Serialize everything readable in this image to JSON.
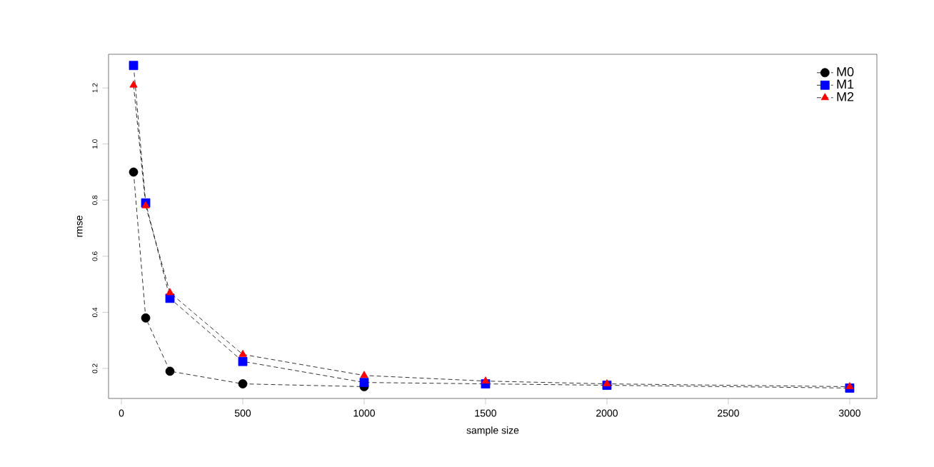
{
  "chart_data": {
    "type": "line",
    "xlabel": "sample size",
    "ylabel": "rmse",
    "x": [
      50,
      100,
      200,
      500,
      1000,
      1500,
      2000,
      3000
    ],
    "series": [
      {
        "name": "M0",
        "color": "#000000",
        "marker": "circle",
        "values": [
          0.9,
          0.38,
          0.19,
          0.145,
          0.135,
          null,
          null,
          null
        ]
      },
      {
        "name": "M1",
        "color": "#0000ff",
        "marker": "square",
        "values": [
          1.28,
          0.79,
          0.45,
          0.225,
          0.15,
          0.145,
          0.14,
          0.13
        ]
      },
      {
        "name": "M2",
        "color": "#ff0000",
        "marker": "triangle",
        "values": [
          1.21,
          0.78,
          0.47,
          0.25,
          0.175,
          0.155,
          0.145,
          0.135
        ]
      }
    ],
    "line_style": "dashed",
    "legend": "top right",
    "xlim": [
      -53,
      3112
    ],
    "ylim": [
      0.093,
      1.32
    ],
    "xticks": [
      0,
      500,
      1000,
      1500,
      2000,
      2500,
      3000
    ],
    "yticks": [
      {
        "value": 0.2,
        "label": "0.2"
      },
      {
        "value": 0.4,
        "label": "0.4"
      },
      {
        "value": 0.6,
        "label": "0.6"
      },
      {
        "value": 0.8,
        "label": "0.8"
      },
      {
        "value": 1.0,
        "label": "1.0"
      },
      {
        "value": 1.2,
        "label": "1.2"
      }
    ]
  }
}
